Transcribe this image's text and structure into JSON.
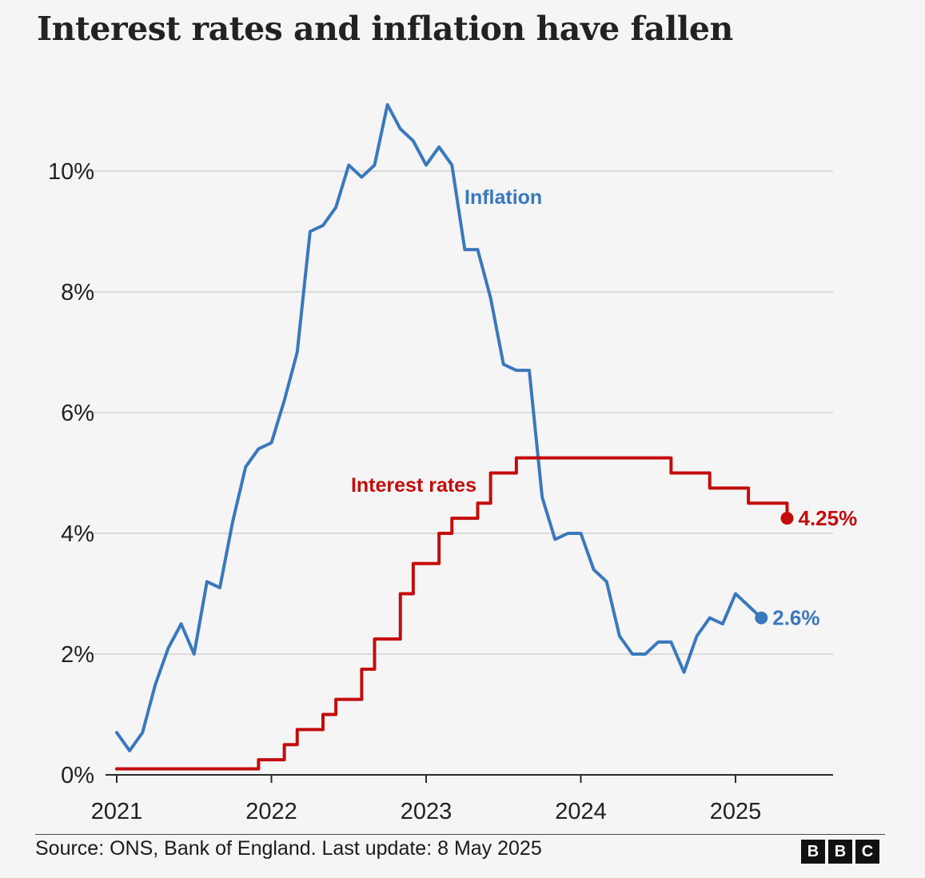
{
  "chart_data": {
    "type": "line",
    "title": "Interest rates and inflation have fallen",
    "xlabel": "",
    "ylabel": "",
    "x_ticks": [
      "2021",
      "2022",
      "2023",
      "2024",
      "2025"
    ],
    "y_ticks": [
      "0%",
      "2%",
      "4%",
      "6%",
      "8%",
      "10%"
    ],
    "ylim": [
      0,
      11.5
    ],
    "xlim": [
      "2021-01",
      "2025-09"
    ],
    "grid": "horizontal",
    "series": [
      {
        "name": "Inflation",
        "color": "#3a78bd",
        "style": "line",
        "end_label": "2.6%",
        "points": [
          [
            "2021-01",
            0.7
          ],
          [
            "2021-02",
            0.4
          ],
          [
            "2021-03",
            0.7
          ],
          [
            "2021-04",
            1.5
          ],
          [
            "2021-05",
            2.1
          ],
          [
            "2021-06",
            2.5
          ],
          [
            "2021-07",
            2.0
          ],
          [
            "2021-08",
            3.2
          ],
          [
            "2021-09",
            3.1
          ],
          [
            "2021-10",
            4.2
          ],
          [
            "2021-11",
            5.1
          ],
          [
            "2021-12",
            5.4
          ],
          [
            "2022-01",
            5.5
          ],
          [
            "2022-02",
            6.2
          ],
          [
            "2022-03",
            7.0
          ],
          [
            "2022-04",
            9.0
          ],
          [
            "2022-05",
            9.1
          ],
          [
            "2022-06",
            9.4
          ],
          [
            "2022-07",
            10.1
          ],
          [
            "2022-08",
            9.9
          ],
          [
            "2022-09",
            10.1
          ],
          [
            "2022-10",
            11.1
          ],
          [
            "2022-11",
            10.7
          ],
          [
            "2022-12",
            10.5
          ],
          [
            "2023-01",
            10.1
          ],
          [
            "2023-02",
            10.4
          ],
          [
            "2023-03",
            10.1
          ],
          [
            "2023-04",
            8.7
          ],
          [
            "2023-05",
            8.7
          ],
          [
            "2023-06",
            7.9
          ],
          [
            "2023-07",
            6.8
          ],
          [
            "2023-08",
            6.7
          ],
          [
            "2023-09",
            6.7
          ],
          [
            "2023-10",
            4.6
          ],
          [
            "2023-11",
            3.9
          ],
          [
            "2023-12",
            4.0
          ],
          [
            "2024-01",
            4.0
          ],
          [
            "2024-02",
            3.4
          ],
          [
            "2024-03",
            3.2
          ],
          [
            "2024-04",
            2.3
          ],
          [
            "2024-05",
            2.0
          ],
          [
            "2024-06",
            2.0
          ],
          [
            "2024-07",
            2.2
          ],
          [
            "2024-08",
            2.2
          ],
          [
            "2024-09",
            1.7
          ],
          [
            "2024-10",
            2.3
          ],
          [
            "2024-11",
            2.6
          ],
          [
            "2024-12",
            2.5
          ],
          [
            "2025-01",
            3.0
          ],
          [
            "2025-02",
            2.8
          ],
          [
            "2025-03",
            2.6
          ]
        ]
      },
      {
        "name": "Interest rates",
        "color": "#c40c0c",
        "style": "step",
        "end_label": "4.25%",
        "points": [
          [
            "2021-01",
            0.1
          ],
          [
            "2021-12",
            0.25
          ],
          [
            "2022-02",
            0.5
          ],
          [
            "2022-03",
            0.75
          ],
          [
            "2022-05",
            1.0
          ],
          [
            "2022-06",
            1.25
          ],
          [
            "2022-08",
            1.75
          ],
          [
            "2022-09",
            2.25
          ],
          [
            "2022-11",
            3.0
          ],
          [
            "2022-12",
            3.5
          ],
          [
            "2023-02",
            4.0
          ],
          [
            "2023-03",
            4.25
          ],
          [
            "2023-05",
            4.5
          ],
          [
            "2023-06",
            5.0
          ],
          [
            "2023-08",
            5.25
          ],
          [
            "2024-08",
            5.0
          ],
          [
            "2024-11",
            4.75
          ],
          [
            "2025-02",
            4.5
          ],
          [
            "2025-05",
            4.25
          ]
        ]
      }
    ]
  },
  "footer": {
    "source": "Source: ONS, Bank of England. Last update: 8 May 2025",
    "logo": [
      "B",
      "B",
      "C"
    ]
  }
}
